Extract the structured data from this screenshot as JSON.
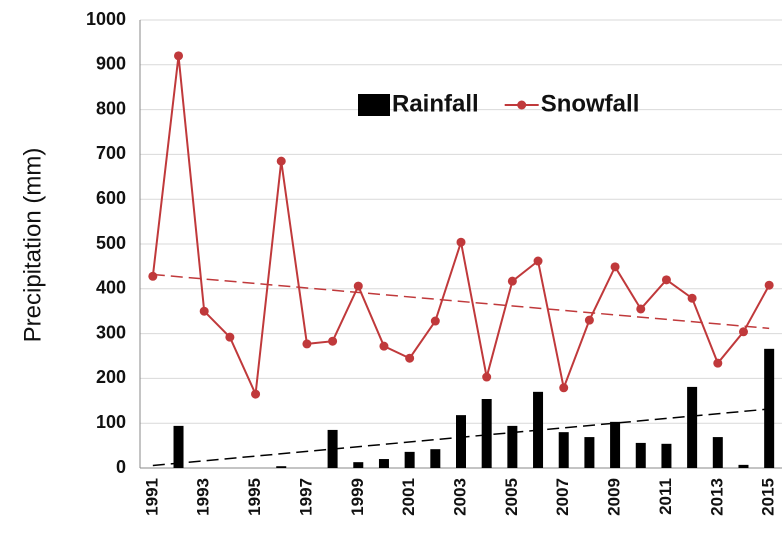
{
  "chart_data": {
    "type": "bar_line",
    "y_label": "Precipitation (mm)",
    "categories": [
      "1991",
      null,
      "1993",
      null,
      "1995",
      null,
      "1997",
      null,
      "1999",
      null,
      "2001",
      null,
      "2003",
      null,
      "2005",
      null,
      "2007",
      null,
      "2009",
      null,
      "2011",
      null,
      "2013",
      null,
      "2015"
    ],
    "series": [
      {
        "name": "Rainfall",
        "type": "bar",
        "color": "#000000",
        "values": [
          0,
          94,
          0,
          0,
          0,
          4,
          0,
          85,
          13,
          20,
          36,
          42,
          118,
          154,
          94,
          170,
          80,
          69,
          103,
          56,
          54,
          181,
          69,
          7,
          266
        ]
      },
      {
        "name": "Snowfall",
        "type": "line",
        "color": "#c0393b",
        "values": [
          428,
          920,
          350,
          292,
          165,
          685,
          277,
          283,
          406,
          272,
          245,
          328,
          504,
          203,
          417,
          462,
          179,
          330,
          449,
          355,
          420,
          379,
          234,
          304,
          408
        ]
      }
    ],
    "trendline": true,
    "ylim": [
      0,
      1000
    ],
    "yticks": [
      0,
      100,
      200,
      300,
      400,
      500,
      600,
      700,
      800,
      900,
      1000
    ],
    "grid": true,
    "legend": "top-right"
  }
}
